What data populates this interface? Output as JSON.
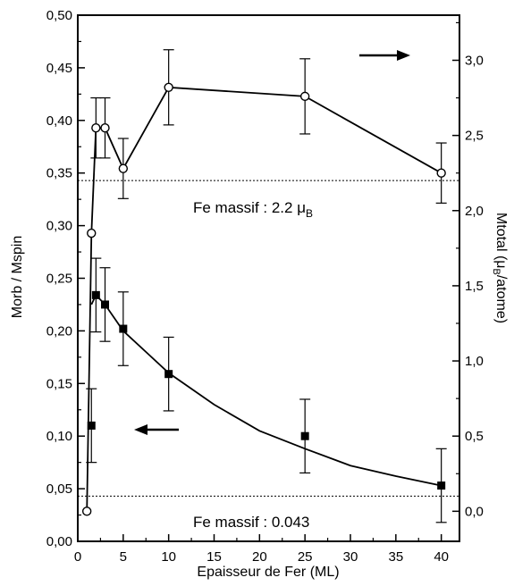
{
  "chart_data": {
    "type": "scatter",
    "xlabel": "Epaisseur de Fer (ML)",
    "ylabel_left": "Morb / Mspin",
    "ylabel_right_main": "Mtotal (μ",
    "ylabel_right_sub": "B",
    "ylabel_right_tail": "/atome)",
    "xlim": [
      0,
      42
    ],
    "ylim_left": [
      0,
      0.5
    ],
    "ylim_right": [
      -0.2,
      3.3
    ],
    "x_ticks": [
      0,
      5,
      10,
      15,
      20,
      25,
      30,
      35,
      40
    ],
    "x_tick_labels": [
      "0",
      "5",
      "10",
      "15",
      "20",
      "25",
      "30",
      "35",
      "40"
    ],
    "y_left_ticks": [
      0,
      0.05,
      0.1,
      0.15,
      0.2,
      0.25,
      0.3,
      0.35,
      0.4,
      0.45,
      0.5
    ],
    "y_left_tick_labels": [
      "0,00",
      "0,05",
      "0,10",
      "0,15",
      "0,20",
      "0,25",
      "0,30",
      "0,35",
      "0,40",
      "0,45",
      "0,50"
    ],
    "y_right_ticks": [
      0,
      0.5,
      1,
      1.5,
      2,
      2.5,
      3
    ],
    "y_right_tick_labels": [
      "0,0",
      "0,5",
      "1,0",
      "1,5",
      "2,0",
      "2,5",
      "3,0"
    ],
    "series": [
      {
        "marker": "open-circle",
        "axis": "right",
        "x": [
          1,
          1.5,
          2,
          3,
          5,
          10,
          25,
          40
        ],
        "y": [
          0.0,
          1.85,
          2.55,
          2.55,
          2.28,
          2.82,
          2.76,
          2.25
        ],
        "err": [
          0,
          0,
          0.2,
          0.2,
          0.2,
          0.25,
          0.25,
          0.2
        ]
      },
      {
        "marker": "filled-square",
        "axis": "left",
        "x": [
          1.5,
          2,
          3,
          5,
          10,
          25,
          40
        ],
        "y": [
          0.11,
          0.234,
          0.225,
          0.202,
          0.159,
          0.1,
          0.053
        ],
        "err": [
          0.035,
          0.035,
          0.035,
          0.035,
          0.035,
          0.035,
          0.035
        ]
      }
    ],
    "fit_curve_left": {
      "x": [
        1.5,
        2,
        3,
        5,
        7.5,
        10,
        15,
        20,
        25,
        30,
        35,
        40
      ],
      "y": [
        0.225,
        0.234,
        0.225,
        0.2,
        0.18,
        0.16,
        0.13,
        0.105,
        0.088,
        0.072,
        0.062,
        0.053
      ]
    },
    "reference_lines": [
      {
        "axis": "right",
        "value": 2.2,
        "label_pre": "Fe massif : 2.2 μ",
        "label_sub": "B"
      },
      {
        "axis": "left",
        "value": 0.043,
        "label_pre": "Fe massif : 0.043",
        "label_sub": ""
      }
    ],
    "arrows": [
      {
        "direction": "right",
        "axis": "right"
      },
      {
        "direction": "left",
        "axis": "left"
      }
    ],
    "grid": false
  }
}
